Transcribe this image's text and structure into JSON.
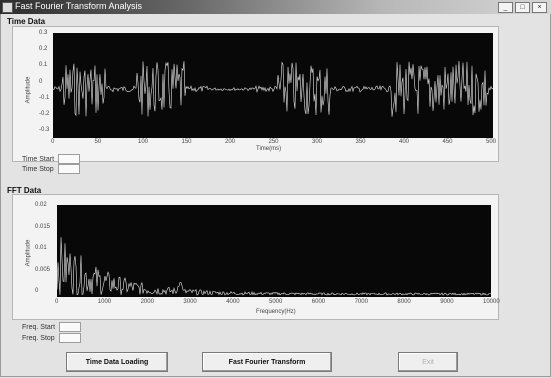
{
  "window": {
    "title": "Fast Fourier Transform Analysis",
    "buttons": [
      "_",
      "□",
      "×"
    ]
  },
  "time_section": {
    "label": "Time Data",
    "ylabel": "Amplitude",
    "yticks": [
      "0.3",
      "0.2",
      "0.1",
      "0",
      "-0.1",
      "-0.2",
      "-0.3"
    ],
    "xticks": [
      "0",
      "50",
      "100",
      "150",
      "200",
      "250",
      "300",
      "350",
      "400",
      "450",
      "500"
    ],
    "xlabel": "Time(ms)",
    "fields": [
      {
        "label": "Time Start"
      },
      {
        "label": "Time Stop"
      }
    ]
  },
  "fft_section": {
    "label": "FFT Data",
    "ylabel": "Amplitude",
    "yticks": [
      "0.02",
      "0.015",
      "0.01",
      "0.005",
      "0"
    ],
    "xticks": [
      "0",
      "1000",
      "2000",
      "3000",
      "4000",
      "5000",
      "6000",
      "7000",
      "8000",
      "9000",
      "10000"
    ],
    "xlabel": "Frequency(Hz)",
    "fields": [
      {
        "label": "Freq. Start"
      },
      {
        "label": "Freq. Stop"
      }
    ]
  },
  "buttons": {
    "load": "Time Data Loading",
    "fft": "Fast Fourier Transform",
    "exit": "Exit"
  },
  "colors": {
    "plot_bg": "#080808",
    "trace": "#e8e8e8"
  }
}
